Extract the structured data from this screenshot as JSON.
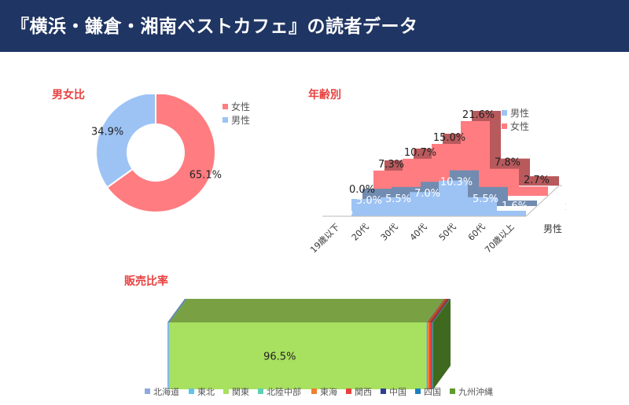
{
  "page": {
    "title": "『横浜・鎌倉・湘南ベストカフェ』の読者データ",
    "colors": {
      "header_bg": "#1f3563",
      "section_title": "#e8413f"
    }
  },
  "chart_data": [
    {
      "type": "pie",
      "variant": "doughnut",
      "title": "男女比",
      "categories": [
        "女性",
        "男性"
      ],
      "values": [
        65.1,
        34.9
      ],
      "value_labels": [
        "65.1%",
        "34.9%"
      ],
      "colors": [
        "#ff7c80",
        "#9dc3f5"
      ],
      "legend": "top-right"
    },
    {
      "type": "area",
      "variant": "3d",
      "title": "年齢別",
      "categories": [
        "19歳以下",
        "20代",
        "30代",
        "40代",
        "50代",
        "60代",
        "70歳以上"
      ],
      "series": [
        {
          "name": "男性",
          "values": [
            0.0,
            5.0,
            5.5,
            7.0,
            10.3,
            5.5,
            1.6
          ],
          "labels": [
            "0.0%",
            "5.0%",
            "5.5%",
            "7.0%",
            "10.3%",
            "5.5%",
            "1.6%"
          ],
          "color": "#9dc3f5"
        },
        {
          "name": "女性",
          "values": [
            0.0,
            7.3,
            10.7,
            15.0,
            21.6,
            7.8,
            2.7
          ],
          "labels": [
            "0.0%",
            "7.3%",
            "10.7%",
            "15.0%",
            "21.6%",
            "7.8%",
            "2.7%"
          ],
          "color": "#ff7c80"
        }
      ],
      "legend": "top-right"
    },
    {
      "type": "bar",
      "variant": "100% stacked 3d",
      "title": "販売比率",
      "series": [
        {
          "name": "北海道",
          "value": 0.4,
          "color": "#8ea9db"
        },
        {
          "name": "東北",
          "value": 0.4,
          "color": "#5fc4e8"
        },
        {
          "name": "関東",
          "value": 96.5,
          "label": "96.5%",
          "color": "#a8e05f"
        },
        {
          "name": "北陸中部",
          "value": 0.3,
          "color": "#5fcfb5"
        },
        {
          "name": "東海",
          "value": 0.9,
          "color": "#ef7f2d"
        },
        {
          "name": "関西",
          "value": 0.9,
          "color": "#e8413f"
        },
        {
          "name": "中国",
          "value": 0.2,
          "color": "#2e3f8f"
        },
        {
          "name": "四国",
          "value": 0.2,
          "color": "#1f7fbf"
        },
        {
          "name": "九州沖縄",
          "value": 0.2,
          "color": "#5d9b2e"
        }
      ],
      "legend": "bottom"
    }
  ]
}
